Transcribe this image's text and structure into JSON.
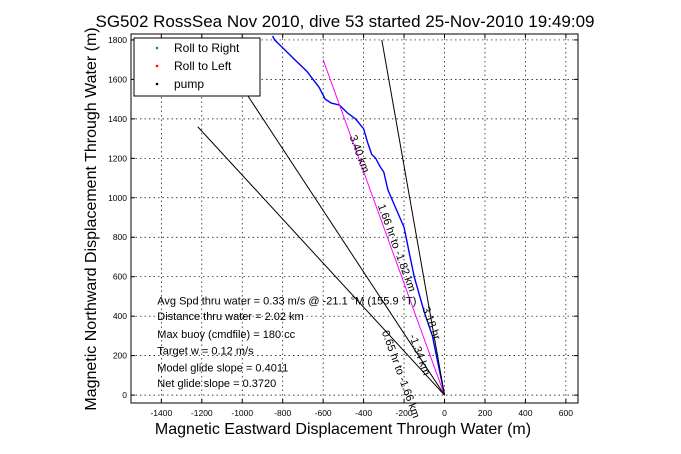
{
  "chart_data": {
    "type": "line",
    "title": "SG502 RossSea Nov 2010, dive 53 started 25-Nov-2010 19:49:09",
    "xlabel": "Magnetic Eastward Displacement Through Water (m)",
    "ylabel": "Magnetic Northward Displacement Through Water (m)",
    "xlim": [
      -1550,
      660
    ],
    "ylim": [
      -40,
      1830
    ],
    "xticks": [
      -1400,
      -1200,
      -1000,
      -800,
      -600,
      -400,
      -200,
      0,
      200,
      400,
      600
    ],
    "yticks": [
      0,
      200,
      400,
      600,
      800,
      1000,
      1200,
      1400,
      1600,
      1800
    ],
    "grid": true,
    "legend_position": "top-left",
    "legend": [
      {
        "label": "Roll to Right",
        "color": "#00aa00",
        "marker": "dot"
      },
      {
        "label": "Roll to Left",
        "color": "#ff0000",
        "marker": "dot"
      },
      {
        "label": "pump",
        "color": "#000000",
        "marker": "dot"
      }
    ],
    "series": [
      {
        "color": "#0000ff",
        "x": [
          0,
          -20,
          -40,
          -60,
          -100,
          -150,
          -170,
          -200,
          -280,
          -300,
          -320,
          -330,
          -340,
          -360,
          -380,
          -400,
          -440,
          -480,
          -520,
          -560,
          -590,
          -620,
          -650,
          -680,
          -700,
          -720,
          -740,
          -760,
          -790,
          -820,
          -840,
          -850
        ],
        "y": [
          0,
          100,
          200,
          300,
          420,
          600,
          700,
          850,
          1040,
          1130,
          1160,
          1180,
          1200,
          1220,
          1280,
          1350,
          1400,
          1430,
          1470,
          1480,
          1500,
          1560,
          1600,
          1640,
          1660,
          1680,
          1700,
          1720,
          1750,
          1780,
          1800,
          1820
        ]
      },
      {
        "color": "#ff00ff",
        "x": [
          0,
          -600
        ],
        "y": [
          0,
          1700
        ]
      }
    ],
    "reference_lines": [
      {
        "color": "#000000",
        "x": [
          0,
          -310
        ],
        "y": [
          0,
          1800
        ]
      },
      {
        "color": "#000000",
        "x": [
          0,
          -1000
        ],
        "y": [
          0,
          1560
        ]
      },
      {
        "color": "#000000",
        "x": [
          0,
          -1220
        ],
        "y": [
          0,
          1360
        ]
      }
    ],
    "annotations": [
      {
        "text": "Avg Spd thru water =  0.33 m/s @ -21.1   °M (155.9 °T)",
        "x": -1420,
        "y": 460
      },
      {
        "text": "Distance thru water =  2.02 km",
        "x": -1420,
        "y": 380
      },
      {
        "text": "Max buoy (cmdfile) = 180 cc",
        "x": -1420,
        "y": 290
      },
      {
        "text": "Target w = 0.12 m/s",
        "x": -1420,
        "y": 205
      },
      {
        "text": "Model glide slope = 0.4011",
        "x": -1420,
        "y": 120
      },
      {
        "text": "Net glide slope = 0.3720",
        "x": -1420,
        "y": 40
      },
      {
        "text": "3.40 km",
        "x": -470,
        "y": 1310,
        "rotate": 70
      },
      {
        "text": "1.66 hr to -1.82 km",
        "x": -330,
        "y": 960,
        "rotate": 70
      },
      {
        "text": "-1.34 km",
        "x": -175,
        "y": 300,
        "rotate": 70
      },
      {
        "text": "0.65 hr to -1.66 km",
        "x": -310,
        "y": 320,
        "rotate": 70
      },
      {
        "text": "3.18 hr",
        "x": -110,
        "y": 440,
        "rotate": 70
      }
    ]
  }
}
